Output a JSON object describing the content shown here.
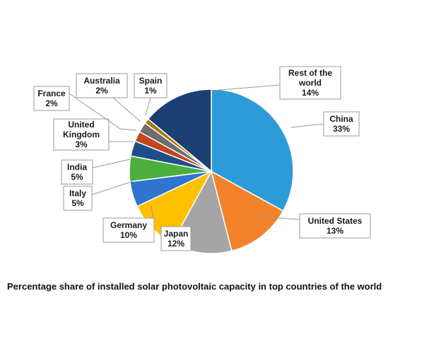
{
  "chart_data": {
    "type": "pie",
    "title": "",
    "slices": [
      {
        "name": "China",
        "value": 33,
        "label": "33%",
        "color": "#2E9BD9"
      },
      {
        "name": "United States",
        "value": 13,
        "label": "13%",
        "color": "#F4822B"
      },
      {
        "name": "Japan",
        "value": 12,
        "label": "12%",
        "color": "#A5A5A5"
      },
      {
        "name": "Germany",
        "value": 10,
        "label": "10%",
        "color": "#FFC000"
      },
      {
        "name": "Italy",
        "value": 5,
        "label": "5%",
        "color": "#2F74CE"
      },
      {
        "name": "India",
        "value": 5,
        "label": "5%",
        "color": "#4CAF3E"
      },
      {
        "name": "United Kingdom",
        "value": 3,
        "label": "3%",
        "color": "#1D4E8A"
      },
      {
        "name": "France",
        "value": 2,
        "label": "2%",
        "color": "#C0461C"
      },
      {
        "name": "Australia",
        "value": 2,
        "label": "2%",
        "color": "#6E6E6E"
      },
      {
        "name": "Spain",
        "value": 1,
        "label": "1%",
        "color": "#A3790C"
      },
      {
        "name": "Rest of the world",
        "value": 14,
        "label": "14%",
        "color": "#1C3F73"
      }
    ]
  },
  "caption": "Percentage share of installed solar photovoltaic capacity in top countries of the world"
}
